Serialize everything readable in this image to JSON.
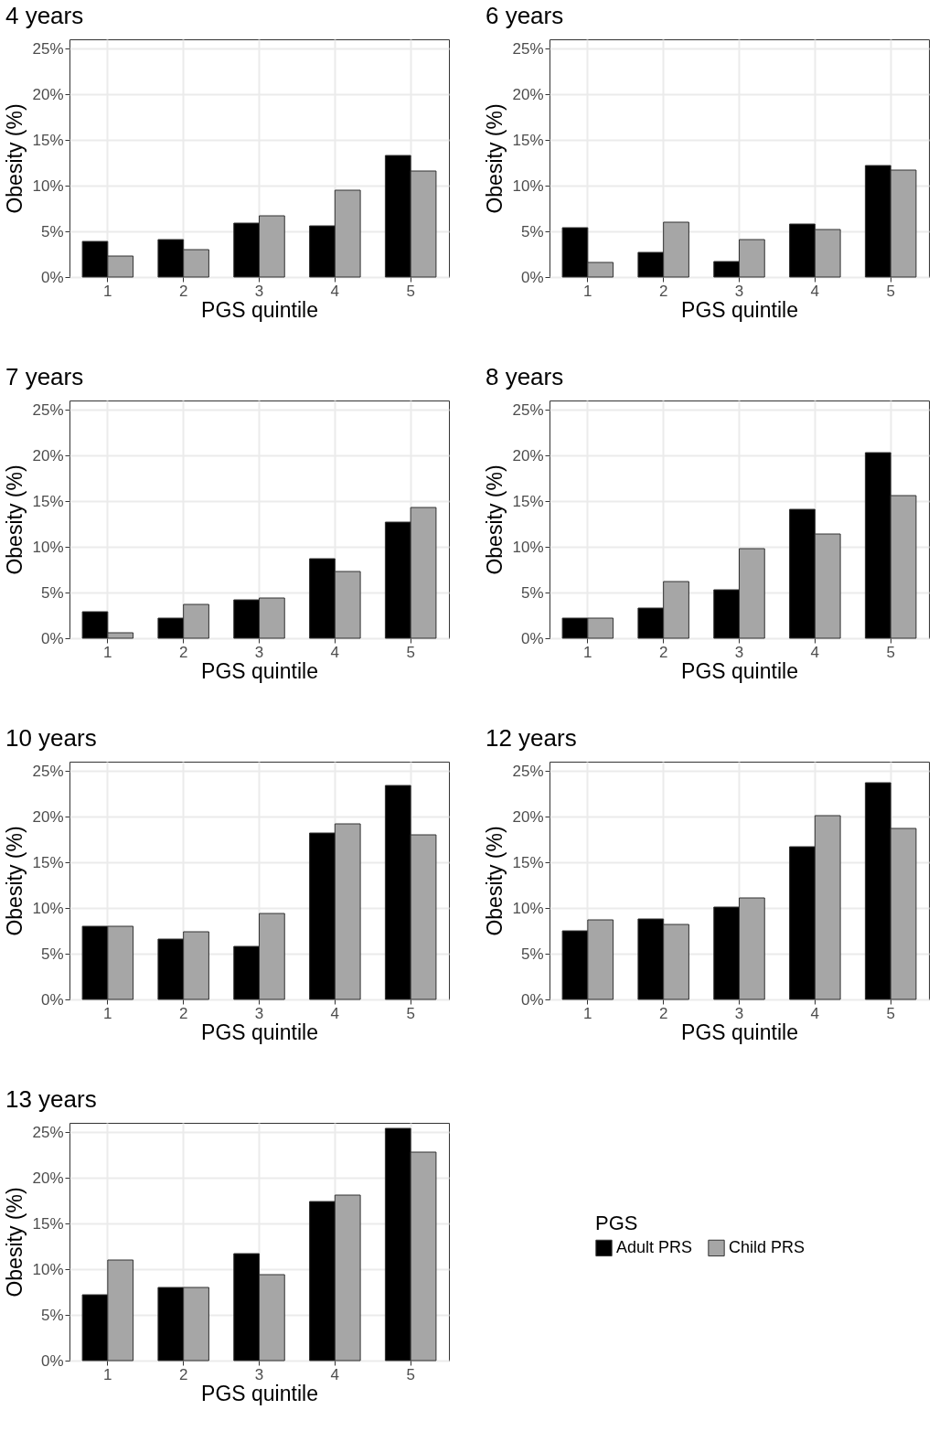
{
  "chart_data": [
    {
      "type": "bar",
      "title": "4 years",
      "xlabel": "PGS quintile",
      "ylabel": "Obesity (%)",
      "categories": [
        "1",
        "2",
        "3",
        "4",
        "5"
      ],
      "ylim": [
        0,
        26
      ],
      "yticks": [
        {
          "value": 0,
          "label": "0%"
        },
        {
          "value": 5,
          "label": "5%"
        },
        {
          "value": 10,
          "label": "10%"
        },
        {
          "value": 15,
          "label": "15%"
        },
        {
          "value": 20,
          "label": "20%"
        },
        {
          "value": 25,
          "label": "25%"
        }
      ],
      "grid": true,
      "series": [
        {
          "color": "#000000",
          "values": [
            3.9,
            4.1,
            5.9,
            5.6,
            13.3
          ]
        },
        {
          "color": "#a6a6a6",
          "values": [
            2.3,
            3.0,
            6.7,
            9.5,
            11.6
          ]
        }
      ]
    },
    {
      "type": "bar",
      "title": "6 years",
      "xlabel": "PGS quintile",
      "ylabel": "Obesity (%)",
      "categories": [
        "1",
        "2",
        "3",
        "4",
        "5"
      ],
      "ylim": [
        0,
        26
      ],
      "yticks": [
        {
          "value": 0,
          "label": "0%"
        },
        {
          "value": 5,
          "label": "5%"
        },
        {
          "value": 10,
          "label": "10%"
        },
        {
          "value": 15,
          "label": "15%"
        },
        {
          "value": 20,
          "label": "20%"
        },
        {
          "value": 25,
          "label": "25%"
        }
      ],
      "grid": true,
      "series": [
        {
          "color": "#000000",
          "values": [
            5.4,
            2.7,
            1.7,
            5.8,
            12.2
          ]
        },
        {
          "color": "#a6a6a6",
          "values": [
            1.6,
            6.0,
            4.1,
            5.2,
            11.7
          ]
        }
      ]
    },
    {
      "type": "bar",
      "title": "7 years",
      "xlabel": "PGS quintile",
      "ylabel": "Obesity (%)",
      "categories": [
        "1",
        "2",
        "3",
        "4",
        "5"
      ],
      "ylim": [
        0,
        26
      ],
      "yticks": [
        {
          "value": 0,
          "label": "0%"
        },
        {
          "value": 5,
          "label": "5%"
        },
        {
          "value": 10,
          "label": "10%"
        },
        {
          "value": 15,
          "label": "15%"
        },
        {
          "value": 20,
          "label": "20%"
        },
        {
          "value": 25,
          "label": "25%"
        }
      ],
      "grid": true,
      "series": [
        {
          "color": "#000000",
          "values": [
            2.9,
            2.2,
            4.2,
            8.7,
            12.7
          ]
        },
        {
          "color": "#a6a6a6",
          "values": [
            0.6,
            3.7,
            4.4,
            7.3,
            14.3
          ]
        }
      ]
    },
    {
      "type": "bar",
      "title": "8 years",
      "xlabel": "PGS quintile",
      "ylabel": "Obesity (%)",
      "categories": [
        "1",
        "2",
        "3",
        "4",
        "5"
      ],
      "ylim": [
        0,
        26
      ],
      "yticks": [
        {
          "value": 0,
          "label": "0%"
        },
        {
          "value": 5,
          "label": "5%"
        },
        {
          "value": 10,
          "label": "10%"
        },
        {
          "value": 15,
          "label": "15%"
        },
        {
          "value": 20,
          "label": "20%"
        },
        {
          "value": 25,
          "label": "25%"
        }
      ],
      "grid": true,
      "series": [
        {
          "color": "#000000",
          "values": [
            2.2,
            3.3,
            5.3,
            14.1,
            20.3
          ]
        },
        {
          "color": "#a6a6a6",
          "values": [
            2.2,
            6.2,
            9.8,
            11.4,
            15.6
          ]
        }
      ]
    },
    {
      "type": "bar",
      "title": "10 years",
      "xlabel": "PGS quintile",
      "ylabel": "Obesity (%)",
      "categories": [
        "1",
        "2",
        "3",
        "4",
        "5"
      ],
      "ylim": [
        0,
        26
      ],
      "yticks": [
        {
          "value": 0,
          "label": "0%"
        },
        {
          "value": 5,
          "label": "5%"
        },
        {
          "value": 10,
          "label": "10%"
        },
        {
          "value": 15,
          "label": "15%"
        },
        {
          "value": 20,
          "label": "20%"
        },
        {
          "value": 25,
          "label": "25%"
        }
      ],
      "grid": true,
      "series": [
        {
          "color": "#000000",
          "values": [
            8.0,
            6.6,
            5.8,
            18.2,
            23.4
          ]
        },
        {
          "color": "#a6a6a6",
          "values": [
            8.0,
            7.4,
            9.4,
            19.2,
            18.0
          ]
        }
      ]
    },
    {
      "type": "bar",
      "title": "12 years",
      "xlabel": "PGS quintile",
      "ylabel": "Obesity (%)",
      "categories": [
        "1",
        "2",
        "3",
        "4",
        "5"
      ],
      "ylim": [
        0,
        26
      ],
      "yticks": [
        {
          "value": 0,
          "label": "0%"
        },
        {
          "value": 5,
          "label": "5%"
        },
        {
          "value": 10,
          "label": "10%"
        },
        {
          "value": 15,
          "label": "15%"
        },
        {
          "value": 20,
          "label": "20%"
        },
        {
          "value": 25,
          "label": "25%"
        }
      ],
      "grid": true,
      "series": [
        {
          "color": "#000000",
          "values": [
            7.5,
            8.8,
            10.1,
            16.7,
            23.7
          ]
        },
        {
          "color": "#a6a6a6",
          "values": [
            8.7,
            8.2,
            11.1,
            20.1,
            18.7
          ]
        }
      ]
    },
    {
      "type": "bar",
      "title": "13 years",
      "xlabel": "PGS quintile",
      "ylabel": "Obesity (%)",
      "categories": [
        "1",
        "2",
        "3",
        "4",
        "5"
      ],
      "ylim": [
        0,
        26
      ],
      "yticks": [
        {
          "value": 0,
          "label": "0%"
        },
        {
          "value": 5,
          "label": "5%"
        },
        {
          "value": 10,
          "label": "10%"
        },
        {
          "value": 15,
          "label": "15%"
        },
        {
          "value": 20,
          "label": "20%"
        },
        {
          "value": 25,
          "label": "25%"
        }
      ],
      "grid": true,
      "legend": "right",
      "legend_title": "PGS",
      "series": [
        {
          "name": "Adult PRS",
          "color": "#000000",
          "values": [
            7.2,
            8.0,
            11.7,
            17.4,
            25.4
          ]
        },
        {
          "name": "Child PRS",
          "color": "#a6a6a6",
          "values": [
            11.0,
            8.0,
            9.4,
            18.1,
            22.8
          ]
        }
      ]
    }
  ]
}
